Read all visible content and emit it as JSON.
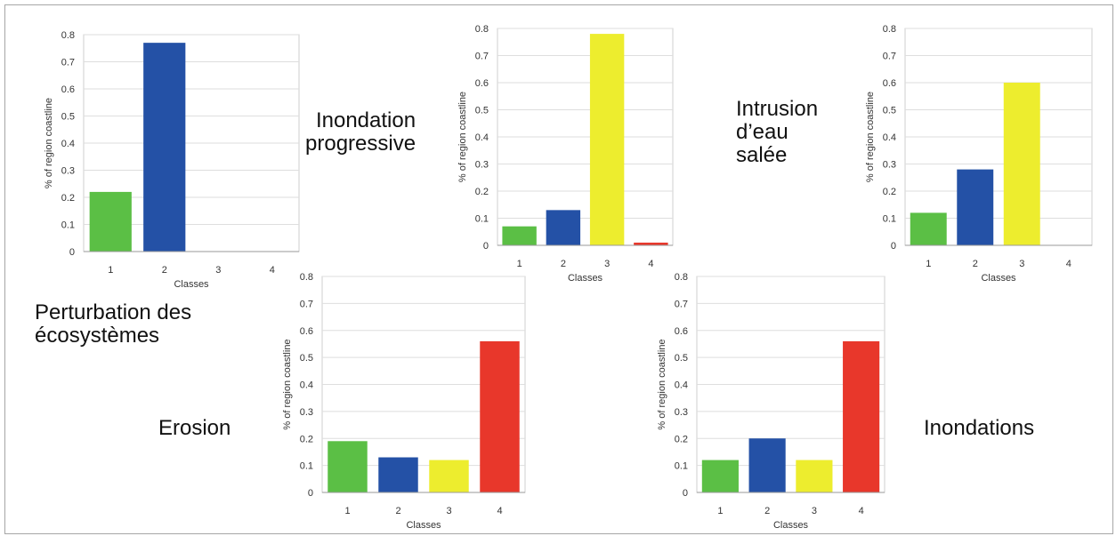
{
  "colors": {
    "green": "#5bbf45",
    "blue": "#2451a6",
    "yellow": "#eded2e",
    "red": "#e8372b"
  },
  "labels": {
    "perturbation": "Perturbation des\nécosystèmes",
    "inondation_progressive": "Inondation\nprogressive",
    "intrusion": "Intrusion\nd’eau\nsalée",
    "erosion": "Erosion",
    "inondations": "Inondations"
  },
  "chart_data": [
    {
      "id": "perturbation",
      "type": "bar",
      "categories": [
        "1",
        "2",
        "3",
        "4"
      ],
      "values": [
        0.22,
        0.77,
        0.0,
        0.0
      ],
      "colors": [
        "#5bbf45",
        "#2451a6",
        "#eded2e",
        "#e8372b"
      ],
      "xlabel": "Classes",
      "ylabel": "% of region coastline",
      "ylim": [
        0,
        0.8
      ],
      "yticks": [
        "0",
        "0.1",
        "0.2",
        "0.3",
        "0.4",
        "0.5",
        "0.6",
        "0.7",
        "0.8"
      ],
      "grid": true
    },
    {
      "id": "inondation_progressive",
      "type": "bar",
      "categories": [
        "1",
        "2",
        "3",
        "4"
      ],
      "values": [
        0.07,
        0.13,
        0.78,
        0.01
      ],
      "colors": [
        "#5bbf45",
        "#2451a6",
        "#eded2e",
        "#e8372b"
      ],
      "xlabel": "Classes",
      "ylabel": "% of region coastline",
      "ylim": [
        0,
        0.8
      ],
      "yticks": [
        "0",
        "0.1",
        "0.2",
        "0.3",
        "0.4",
        "0.5",
        "0.6",
        "0.7",
        "0.8"
      ],
      "grid": true
    },
    {
      "id": "intrusion",
      "type": "bar",
      "categories": [
        "1",
        "2",
        "3",
        "4"
      ],
      "values": [
        0.12,
        0.28,
        0.6,
        0.0
      ],
      "colors": [
        "#5bbf45",
        "#2451a6",
        "#eded2e",
        "#e8372b"
      ],
      "xlabel": "Classes",
      "ylabel": "% of region coastline",
      "ylim": [
        0,
        0.8
      ],
      "yticks": [
        "0",
        "0.1",
        "0.2",
        "0.3",
        "0.4",
        "0.5",
        "0.6",
        "0.7",
        "0.8"
      ],
      "grid": true
    },
    {
      "id": "erosion",
      "type": "bar",
      "categories": [
        "1",
        "2",
        "3",
        "4"
      ],
      "values": [
        0.19,
        0.13,
        0.12,
        0.56
      ],
      "colors": [
        "#5bbf45",
        "#2451a6",
        "#eded2e",
        "#e8372b"
      ],
      "xlabel": "Classes",
      "ylabel": "% of region coastline",
      "ylim": [
        0,
        0.8
      ],
      "yticks": [
        "0",
        "0.1",
        "0.2",
        "0.3",
        "0.4",
        "0.5",
        "0.6",
        "0.7",
        "0.8"
      ],
      "grid": true
    },
    {
      "id": "inondations",
      "type": "bar",
      "categories": [
        "1",
        "2",
        "3",
        "4"
      ],
      "values": [
        0.12,
        0.2,
        0.12,
        0.56
      ],
      "colors": [
        "#5bbf45",
        "#2451a6",
        "#eded2e",
        "#e8372b"
      ],
      "xlabel": "Classes",
      "ylabel": "% of region coastline",
      "ylim": [
        0,
        0.8
      ],
      "yticks": [
        "0",
        "0.1",
        "0.2",
        "0.3",
        "0.4",
        "0.5",
        "0.6",
        "0.7",
        "0.8"
      ],
      "grid": true
    }
  ]
}
